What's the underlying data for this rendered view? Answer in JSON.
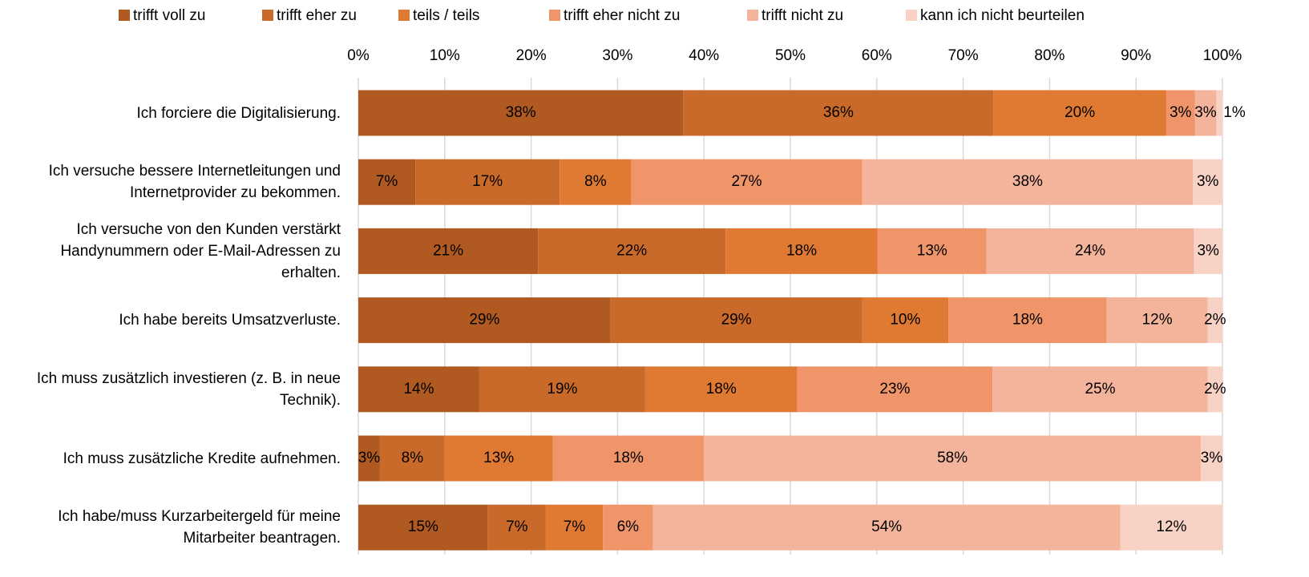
{
  "chart_data": {
    "type": "stacked-barh",
    "categories": [
      "Ich forciere die Digitalisierung.",
      "Ich versuche bessere Internetleitungen und Internetprovider zu bekommen.",
      "Ich versuche von den Kunden verstärkt Handynummern oder E-Mail-Adressen zu erhalten.",
      "Ich habe bereits Umsatzverluste.",
      "Ich muss zusätzlich investieren (z. B. in neue Technik).",
      "Ich muss zusätzliche Kredite aufnehmen.",
      "Ich habe/muss Kurzarbeitergeld für meine Mitarbeiter beantragen."
    ],
    "series": [
      {
        "name": "trifft voll zu",
        "color": "#b05a22",
        "values": [
          37.6,
          6.6,
          20.8,
          29.2,
          14.0,
          2.5,
          15.0
        ],
        "value_labels": [
          "38%",
          "7%",
          "21%",
          "29%",
          "14%",
          "3%",
          "15%"
        ]
      },
      {
        "name": "trifft eher zu",
        "color": "#c96a2b",
        "values": [
          35.9,
          16.7,
          21.7,
          29.1,
          19.2,
          7.5,
          6.7
        ],
        "value_labels": [
          "36%",
          "17%",
          "22%",
          "29%",
          "19%",
          "8%",
          "7%"
        ]
      },
      {
        "name": "teils / teils",
        "color": "#e07a33",
        "values": [
          20.0,
          8.3,
          17.6,
          10.0,
          17.6,
          12.5,
          6.6
        ],
        "value_labels": [
          "20%",
          "8%",
          "18%",
          "10%",
          "18%",
          "13%",
          "7%"
        ]
      },
      {
        "name": "trifft eher nicht zu",
        "color": "#f0956a",
        "values": [
          3.3,
          26.7,
          12.6,
          18.3,
          22.6,
          17.5,
          5.8
        ],
        "value_labels": [
          "3%",
          "27%",
          "13%",
          "18%",
          "23%",
          "18%",
          "6%"
        ]
      },
      {
        "name": "trifft nicht zu",
        "color": "#f4b49c",
        "values": [
          2.5,
          38.3,
          24.0,
          11.7,
          24.9,
          57.5,
          54.1
        ],
        "value_labels": [
          "3%",
          "38%",
          "24%",
          "12%",
          "25%",
          "58%",
          "54%"
        ]
      },
      {
        "name": "kann ich nicht beurteilen",
        "color": "#f8d3c5",
        "values": [
          0.7,
          3.4,
          3.3,
          1.7,
          1.7,
          2.5,
          11.8
        ],
        "value_labels": [
          "1%",
          "3%",
          "3%",
          "2%",
          "2%",
          "3%",
          "12%"
        ]
      }
    ],
    "xlim": [
      0,
      100
    ],
    "xticks": [
      {
        "value": 0,
        "label": "0%"
      },
      {
        "value": 10,
        "label": "10%"
      },
      {
        "value": 20,
        "label": "20%"
      },
      {
        "value": 30,
        "label": "30%"
      },
      {
        "value": 40,
        "label": "40%"
      },
      {
        "value": 50,
        "label": "50%"
      },
      {
        "value": 60,
        "label": "60%"
      },
      {
        "value": 70,
        "label": "70%"
      },
      {
        "value": 80,
        "label": "80%"
      },
      {
        "value": 90,
        "label": "90%"
      },
      {
        "value": 100,
        "label": "100%"
      }
    ],
    "grid": true,
    "legend": "top"
  }
}
